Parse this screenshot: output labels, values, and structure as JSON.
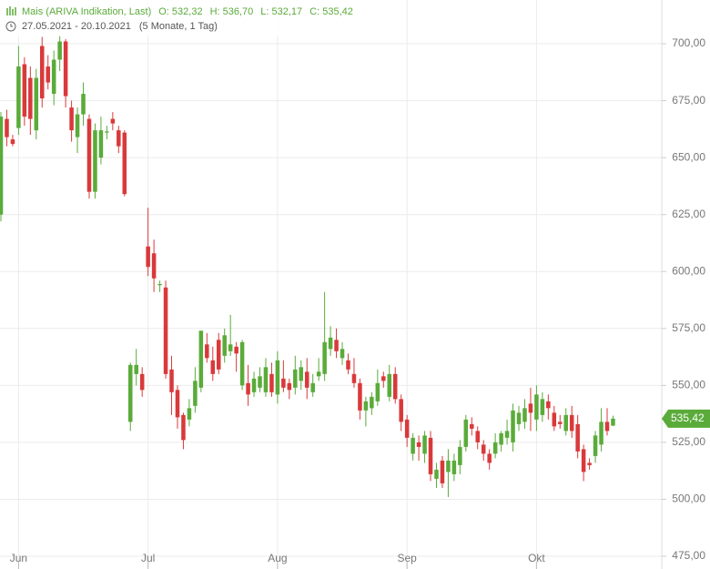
{
  "chart_data": {
    "type": "candlestick",
    "title": "Mais (ARIVA Indikation, Last)",
    "ohlc_labels": [
      "O: 532,32",
      "H: 536,70",
      "L: 532,17",
      "C: 535,42"
    ],
    "date_range": "27.05.2021 - 20.10.2021",
    "period": "(5 Monate, 1 Tag)",
    "up_color": "#5aab3a",
    "down_color": "#d9393b",
    "grid": true,
    "x": [
      0,
      1,
      2,
      3,
      4,
      5,
      6,
      7,
      8,
      9,
      10,
      11,
      12,
      13,
      14,
      15,
      16,
      17,
      18,
      19,
      20,
      21,
      22,
      23,
      24,
      25,
      26,
      27,
      28,
      29,
      30,
      31,
      32,
      33,
      34,
      35,
      36,
      37,
      38,
      39,
      40,
      41,
      42,
      43,
      44,
      45,
      46,
      47,
      48,
      49,
      50,
      51,
      52,
      53,
      54,
      55,
      56,
      57,
      58,
      59,
      60,
      61,
      62,
      63,
      64,
      65,
      66,
      67,
      68,
      69,
      70,
      71,
      72,
      73,
      74,
      75,
      76,
      77,
      78,
      79,
      80,
      81,
      82,
      83,
      84,
      85,
      86,
      87,
      88,
      89,
      90,
      91,
      92,
      93,
      94,
      95,
      96,
      97,
      98,
      99,
      100,
      101,
      102,
      103,
      104
    ],
    "open": [
      625,
      667,
      658,
      663,
      691,
      685,
      662,
      699,
      690,
      678,
      693,
      701,
      672,
      659,
      669,
      667,
      635,
      650,
      661,
      667,
      662,
      661,
      534,
      555,
      555,
      611,
      608,
      594,
      593,
      557,
      548,
      537,
      535,
      541,
      549,
      568,
      561,
      570,
      563,
      565,
      567,
      550,
      551,
      547,
      549,
      547,
      555,
      546,
      553,
      551,
      549,
      552,
      556,
      547,
      554,
      555,
      566,
      570,
      562,
      561,
      555,
      551,
      539,
      540,
      543,
      554,
      545,
      555,
      544,
      535,
      520,
      525,
      520,
      527,
      509,
      517,
      512,
      511,
      515,
      523,
      533,
      530,
      524,
      520,
      520,
      524,
      527,
      525,
      533,
      534,
      542,
      535,
      537,
      543,
      538,
      534,
      530,
      537,
      533,
      522,
      516,
      519,
      524,
      534,
      532.32
    ],
    "high": [
      670,
      671,
      660,
      699,
      694,
      690,
      689,
      703,
      695,
      697,
      704,
      702,
      675,
      672,
      683,
      669,
      665,
      668,
      664,
      670,
      664,
      662,
      560,
      566,
      558,
      628,
      614,
      596,
      596,
      563,
      550,
      538,
      544,
      558,
      574,
      573,
      567,
      573,
      575,
      581,
      569,
      570,
      559,
      556,
      558,
      562,
      560,
      565,
      561,
      553,
      563,
      561,
      562,
      555,
      562,
      591,
      576,
      575,
      569,
      564,
      562,
      553,
      545,
      547,
      557,
      556,
      559,
      558,
      546,
      537,
      529,
      528,
      530,
      530,
      516,
      519,
      522,
      520,
      526,
      537,
      536,
      532,
      526,
      522,
      529,
      530,
      535,
      542,
      541,
      544,
      549,
      550,
      547,
      546,
      541,
      537,
      540,
      541,
      537,
      524,
      518,
      530,
      540,
      540,
      536.7
    ],
    "low": [
      622,
      655,
      655,
      660,
      664,
      660,
      658,
      672,
      680,
      673,
      688,
      672,
      657,
      652,
      664,
      632,
      632,
      647,
      658,
      662,
      652,
      633,
      530,
      550,
      545,
      598,
      591,
      591,
      553,
      537,
      531,
      522,
      532,
      538,
      547,
      560,
      552,
      555,
      560,
      563,
      556,
      548,
      541,
      545,
      547,
      545,
      545,
      542,
      547,
      544,
      546,
      548,
      544,
      545,
      552,
      552,
      563,
      562,
      559,
      555,
      549,
      535,
      532,
      537,
      541,
      549,
      543,
      542,
      530,
      523,
      517,
      517,
      516,
      508,
      505,
      505,
      501,
      508,
      511,
      521,
      528,
      522,
      517,
      513,
      518,
      521,
      524,
      521,
      530,
      531,
      530,
      530,
      534,
      535,
      530,
      531,
      528,
      527,
      518,
      508,
      513,
      516,
      521,
      528,
      532.17
    ],
    "close": [
      668,
      659,
      656,
      690,
      668,
      667,
      685,
      676,
      683,
      693,
      701,
      677,
      662,
      669,
      678,
      635,
      662,
      662,
      661.5,
      665,
      655,
      634,
      559,
      559,
      548,
      602,
      597,
      594.5,
      555,
      547,
      536,
      526,
      540,
      552,
      574,
      562,
      555,
      557,
      572,
      568,
      564,
      569,
      546,
      553,
      554,
      558,
      547,
      561,
      549,
      548,
      557,
      558,
      549,
      551,
      556,
      569,
      571,
      565,
      566,
      557,
      551,
      539,
      543,
      545,
      551,
      552,
      555,
      544,
      534,
      527,
      527,
      523,
      528,
      511,
      513,
      507,
      517,
      517,
      523,
      535,
      531,
      525,
      520,
      516,
      525,
      529,
      530,
      539,
      538,
      540,
      538,
      546,
      544,
      540,
      532,
      533,
      537,
      530,
      521,
      512,
      515,
      528,
      534,
      530,
      535.42
    ],
    "last_value": 535.42,
    "last_value_label": "535,42",
    "xlim": [
      -0.155,
      112.28
    ],
    "ylim": [
      469.4,
      719.2
    ],
    "xticks": [
      {
        "value": 3,
        "label": "Jun"
      },
      {
        "value": 25,
        "label": "Jul"
      },
      {
        "value": 47,
        "label": "Aug"
      },
      {
        "value": 69,
        "label": "Sep"
      },
      {
        "value": 91,
        "label": "Okt"
      }
    ],
    "yticks": [
      {
        "value": 475,
        "label": "475,00"
      },
      {
        "value": 500,
        "label": "500,00"
      },
      {
        "value": 525,
        "label": "525,00"
      },
      {
        "value": 550,
        "label": "550,00"
      },
      {
        "value": 575,
        "label": "575,00"
      },
      {
        "value": 600,
        "label": "600,00"
      },
      {
        "value": 625,
        "label": "625,00"
      },
      {
        "value": 650,
        "label": "650,00"
      },
      {
        "value": 675,
        "label": "675,00"
      },
      {
        "value": 700,
        "label": "700,00"
      }
    ]
  }
}
